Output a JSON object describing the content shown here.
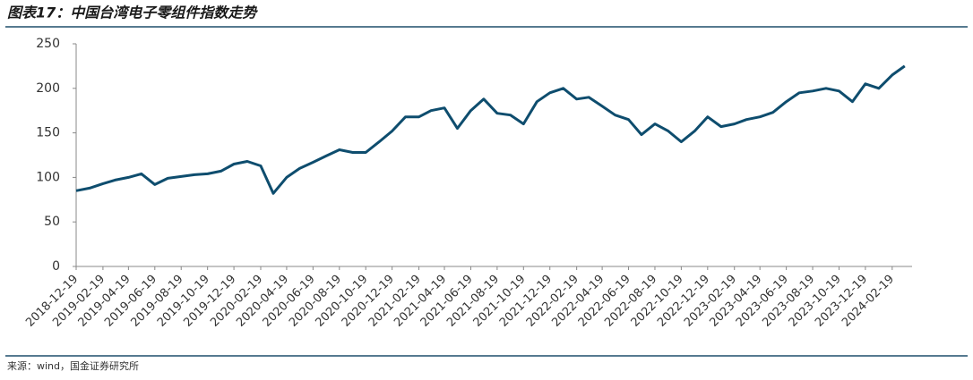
{
  "title": "图表17：中国台湾电子零组件指数走势",
  "source": "来源：wind，国金证券研究所",
  "chart_data": {
    "type": "line",
    "x": [
      "2018-12-19",
      "2019-01-19",
      "2019-02-19",
      "2019-03-19",
      "2019-04-19",
      "2019-05-19",
      "2019-06-19",
      "2019-07-19",
      "2019-08-19",
      "2019-09-19",
      "2019-10-19",
      "2019-11-19",
      "2019-12-19",
      "2020-01-19",
      "2020-02-19",
      "2020-03-19",
      "2020-04-19",
      "2020-05-19",
      "2020-06-19",
      "2020-07-19",
      "2020-08-19",
      "2020-09-19",
      "2020-10-19",
      "2020-11-19",
      "2020-12-19",
      "2021-01-19",
      "2021-02-19",
      "2021-03-19",
      "2021-04-19",
      "2021-05-19",
      "2021-06-19",
      "2021-07-19",
      "2021-08-19",
      "2021-09-19",
      "2021-10-19",
      "2021-11-19",
      "2021-12-19",
      "2022-01-19",
      "2022-02-19",
      "2022-03-19",
      "2022-04-19",
      "2022-05-19",
      "2022-06-19",
      "2022-07-19",
      "2022-08-19",
      "2022-09-19",
      "2022-10-19",
      "2022-11-19",
      "2022-12-19",
      "2023-01-19",
      "2023-02-19",
      "2023-03-19",
      "2023-04-19",
      "2023-05-19",
      "2023-06-19",
      "2023-07-19",
      "2023-08-19",
      "2023-09-19",
      "2023-10-19",
      "2023-11-19",
      "2023-12-19",
      "2024-01-19",
      "2024-02-19",
      "2024-03-19"
    ],
    "series": [
      {
        "color": "#0e4d6e",
        "values": [
          85,
          88,
          93,
          97,
          100,
          104,
          92,
          99,
          101,
          103,
          104,
          107,
          115,
          118,
          113,
          82,
          100,
          110,
          117,
          124,
          131,
          128,
          128,
          140,
          152,
          168,
          168,
          175,
          178,
          155,
          175,
          188,
          172,
          170,
          160,
          185,
          195,
          200,
          188,
          190,
          180,
          170,
          165,
          148,
          160,
          152,
          140,
          152,
          168,
          157,
          160,
          165,
          168,
          173,
          185,
          195,
          197,
          200,
          197,
          185,
          205,
          200,
          215,
          225
        ]
      }
    ],
    "xlim": [
      "2018-12-19",
      "2024-04-05"
    ],
    "xticks": [
      "2018-12-19",
      "2019-02-19",
      "2019-04-19",
      "2019-06-19",
      "2019-08-19",
      "2019-10-19",
      "2019-12-19",
      "2020-02-19",
      "2020-04-19",
      "2020-06-19",
      "2020-08-19",
      "2020-10-19",
      "2020-12-19",
      "2021-02-19",
      "2021-04-19",
      "2021-06-19",
      "2021-08-19",
      "2021-10-19",
      "2021-12-19",
      "2022-02-19",
      "2022-04-19",
      "2022-06-19",
      "2022-08-19",
      "2022-10-19",
      "2022-12-19",
      "2023-02-19",
      "2023-04-19",
      "2023-06-19",
      "2023-08-19",
      "2023-10-19",
      "2023-12-19",
      "2024-02-19"
    ],
    "ylim": [
      0,
      250
    ],
    "yticks": [
      0,
      50,
      100,
      150,
      200,
      250
    ]
  }
}
